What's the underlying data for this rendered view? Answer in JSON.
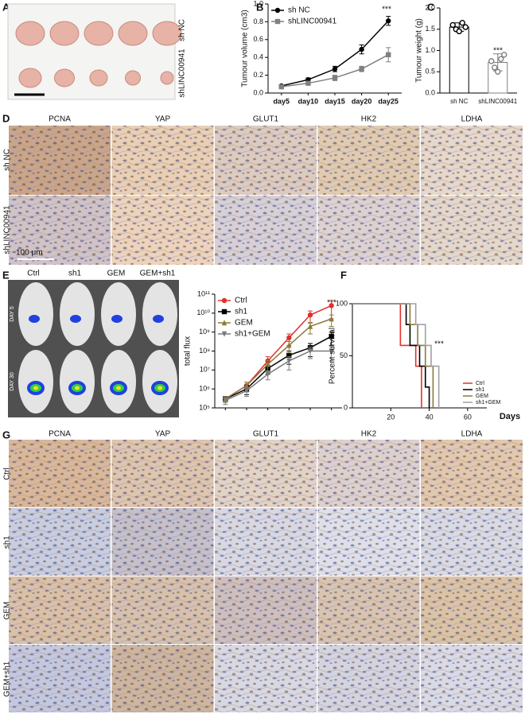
{
  "figure": {
    "A": {
      "label": "A",
      "rows": [
        "sh NC",
        "shLINC00941"
      ]
    },
    "D": {
      "label": "D",
      "columns": [
        "PCNA",
        "YAP",
        "GLUT1",
        "HK2",
        "LDHA"
      ],
      "rows": [
        "sh NC",
        "shLINC00941"
      ],
      "scale_bar": "100 μm"
    },
    "E": {
      "label": "E",
      "columns": [
        "Ctrl",
        "sh1",
        "GEM",
        "GEM+sh1"
      ],
      "rows": [
        "DAY 5",
        "DAY 30"
      ]
    },
    "G": {
      "label": "G",
      "columns": [
        "PCNA",
        "YAP",
        "GLUT1",
        "HK2",
        "LDHA"
      ],
      "rows": [
        "Ctrl",
        "sh1",
        "GEM",
        "GEM+sh1"
      ]
    }
  },
  "chart_data": [
    {
      "panel": "B",
      "type": "line",
      "ylabel": "Tumour volume (cm3)",
      "annotation": "***",
      "legend": "upper left",
      "categories": [
        "day5",
        "day10",
        "day15",
        "day20",
        "day25"
      ],
      "series": [
        {
          "name": "sh NC",
          "color": "#000000",
          "marker": "circle",
          "values": [
            0.08,
            0.15,
            0.27,
            0.49,
            0.81
          ],
          "errors": [
            0.01,
            0.02,
            0.03,
            0.05,
            0.05
          ]
        },
        {
          "name": "shLINC00941",
          "color": "#808080",
          "marker": "square",
          "values": [
            0.07,
            0.11,
            0.17,
            0.27,
            0.43
          ],
          "errors": [
            0.01,
            0.02,
            0.03,
            0.03,
            0.08
          ]
        }
      ],
      "ylim": [
        0,
        1.0
      ],
      "yticks": [
        {
          "value": 0,
          "label": "0.0"
        },
        0.2,
        0.4,
        0.6,
        0.8,
        {
          "value": 1.0,
          "label": "1.0"
        }
      ]
    },
    {
      "panel": "C",
      "type": "bar",
      "ylabel": "Tumour weight (g)",
      "annotation": "***",
      "categories": [
        "sh NC",
        "shLINC00941"
      ],
      "values": [
        1.55,
        0.72
      ],
      "errors": [
        0.1,
        0.2
      ],
      "colors": [
        "#ffffff",
        "#ffffff"
      ],
      "point_colors": [
        "#000000",
        "#808080"
      ],
      "points": [
        [
          1.6,
          1.5,
          1.45,
          1.65,
          1.55
        ],
        [
          0.75,
          0.6,
          0.5,
          0.8,
          0.9
        ]
      ],
      "ylim": [
        0,
        2.0
      ],
      "yticks": [
        {
          "value": 0,
          "label": "0.0"
        },
        0.5,
        {
          "value": 1.0,
          "label": "1.0"
        },
        1.5,
        {
          "value": 2.0,
          "label": "2.0"
        }
      ]
    },
    {
      "panel": "E",
      "type": "line",
      "ylabel": "total flux",
      "annotation": "***",
      "legend": "upper left",
      "log_scale": true,
      "categories": [
        null,
        null,
        null,
        null,
        null,
        null
      ],
      "series": [
        {
          "name": "Ctrl",
          "color": "#e0302a",
          "marker": "circle",
          "values": [
            300000,
            1500000,
            30000000,
            500000000,
            8000000000,
            25000000000
          ],
          "errors": [
            100000,
            800000,
            20000000,
            300000000,
            5000000000,
            20000000000
          ]
        },
        {
          "name": "sh1",
          "color": "#000000",
          "marker": "square",
          "values": [
            300000,
            1000000,
            12000000,
            60000000,
            150000000,
            600000000
          ],
          "errors": [
            100000,
            500000,
            6000000,
            40000000,
            100000000,
            400000000
          ]
        },
        {
          "name": "GEM",
          "color": "#8a7a3a",
          "marker": "triangle-up",
          "values": [
            300000,
            1500000,
            20000000,
            200000000,
            2000000000,
            5000000000
          ],
          "errors": [
            100000,
            800000,
            12000000,
            120000000,
            1200000000,
            3000000000
          ]
        },
        {
          "name": "sh1+GEM",
          "color": "#7a7a7a",
          "marker": "triangle-down",
          "values": [
            250000,
            800000,
            6000000,
            30000000,
            100000000,
            100000000
          ],
          "errors": [
            100000,
            400000,
            3000000,
            20000000,
            60000000,
            70000000
          ]
        }
      ],
      "ylim": [
        100000,
        100000000000
      ],
      "yticks": [
        {
          "value": 100000,
          "label": "10⁵"
        },
        {
          "value": 1000000,
          "label": "10⁶"
        },
        {
          "value": 10000000,
          "label": "10⁷"
        },
        {
          "value": 100000000,
          "label": "10⁸"
        },
        {
          "value": 1000000000,
          "label": "10⁹"
        },
        {
          "value": 10000000000,
          "label": "10¹⁰"
        },
        {
          "value": 100000000000,
          "label": "10¹¹"
        }
      ]
    },
    {
      "panel": "F",
      "type": "step",
      "ylabel": "Percent survival",
      "xlabel": "Days",
      "annotation": "***",
      "legend": "center right",
      "series": [
        {
          "name": "Ctrl",
          "color": "#e8302a",
          "x": [
            0,
            25,
            33,
            36
          ],
          "values": [
            100,
            60,
            40,
            0
          ]
        },
        {
          "name": "sh1",
          "color": "#000000",
          "x": [
            0,
            28,
            30,
            35,
            38,
            40
          ],
          "values": [
            100,
            80,
            60,
            40,
            20,
            0
          ]
        },
        {
          "name": "GEM",
          "color": "#8a7a3a",
          "x": [
            0,
            30,
            34,
            38,
            42
          ],
          "values": [
            100,
            80,
            60,
            40,
            0
          ]
        },
        {
          "name": "sh1+GEM",
          "color": "#a0a0a0",
          "x": [
            0,
            33,
            38,
            41,
            45
          ],
          "values": [
            100,
            80,
            60,
            40,
            0
          ]
        }
      ],
      "xlim": [
        0,
        70
      ],
      "xticks": [
        20,
        40,
        60
      ],
      "ylim": [
        0,
        100
      ],
      "yticks": [
        0,
        50,
        100
      ]
    }
  ]
}
